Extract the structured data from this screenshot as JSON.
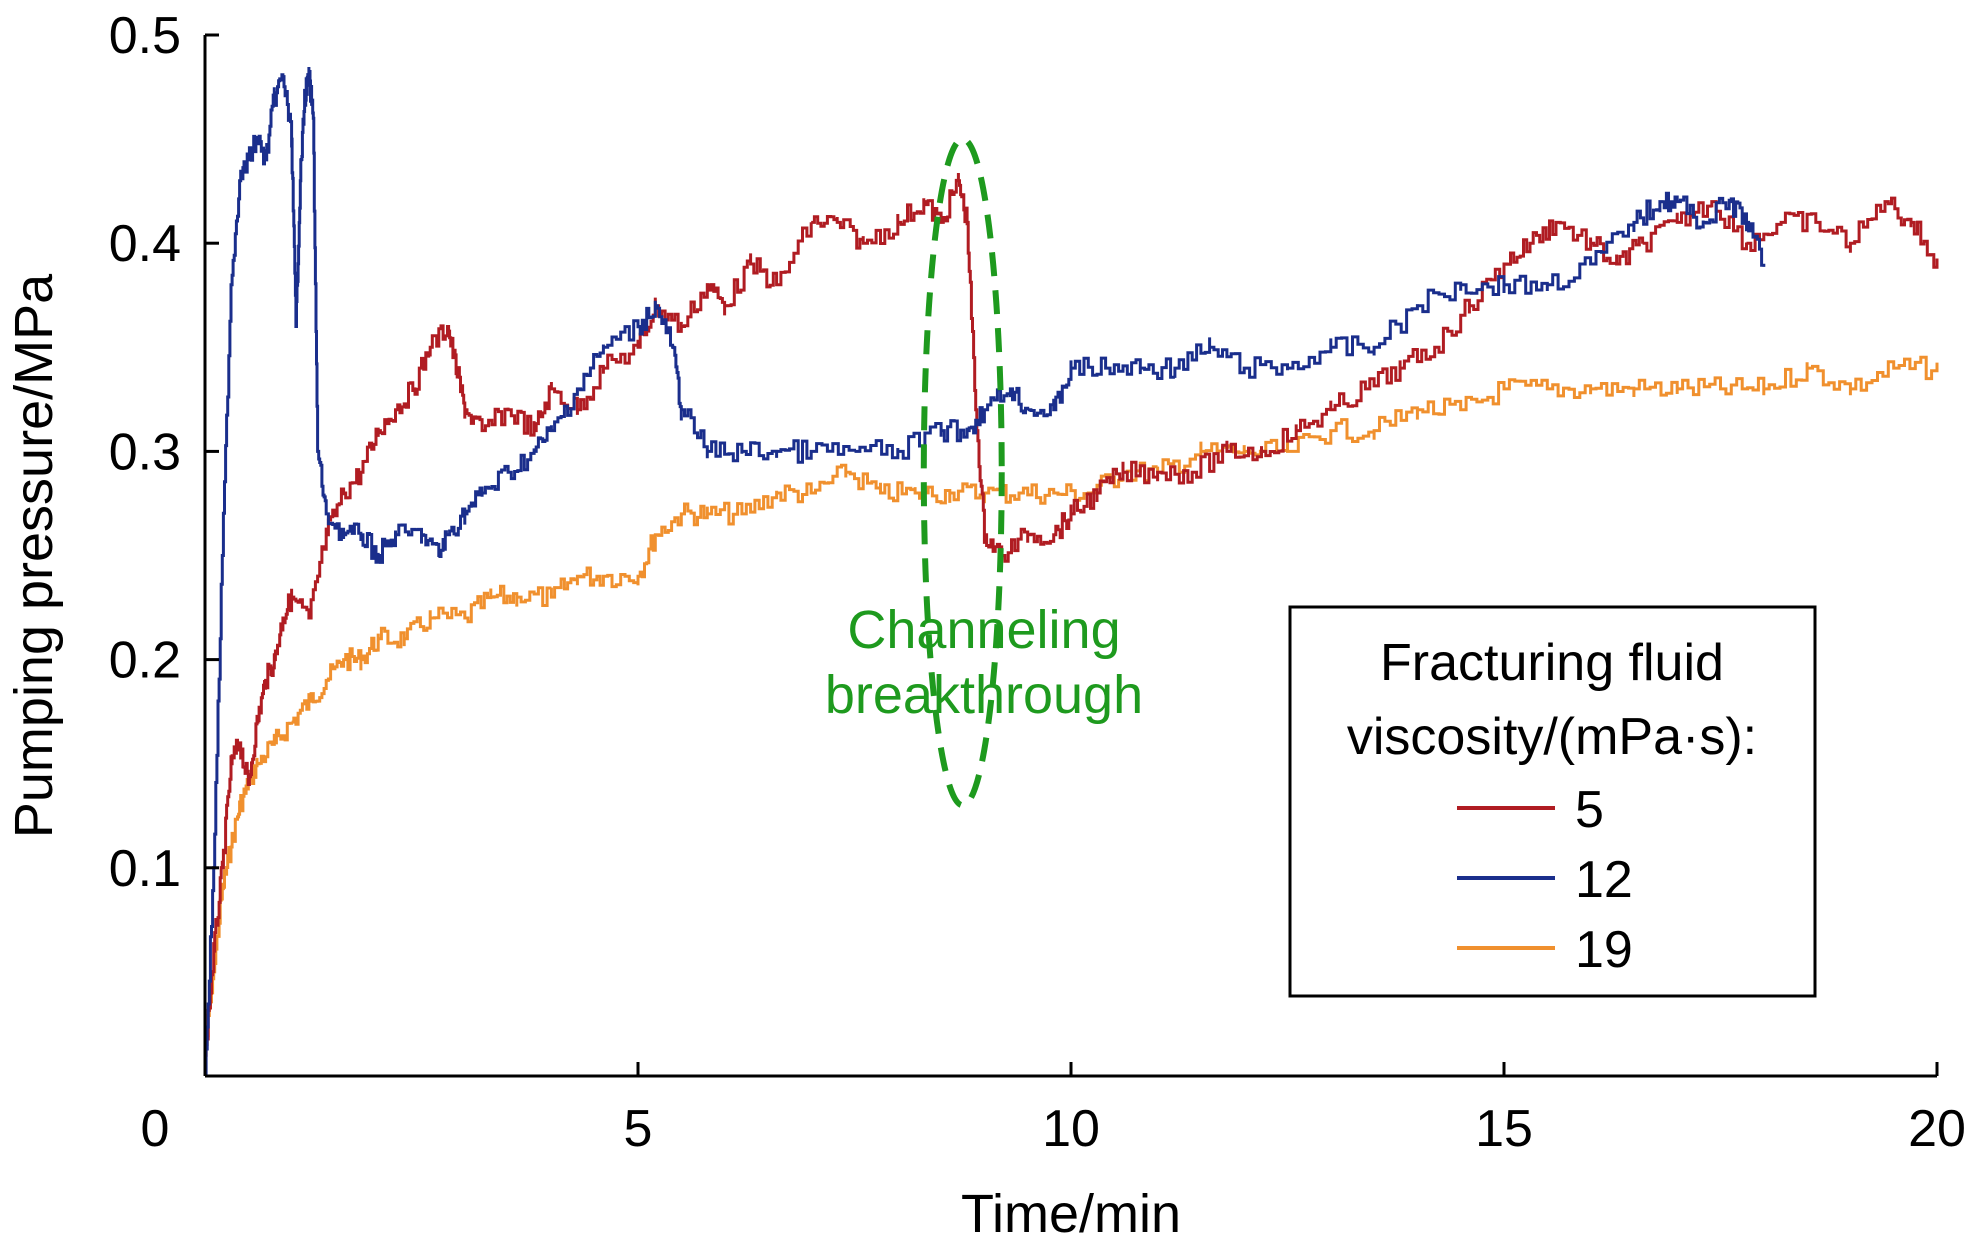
{
  "chart_data": {
    "type": "line",
    "xlabel": "Time/min",
    "ylabel": "Pumping  pressure/MPa",
    "xlim": [
      0,
      20
    ],
    "ylim": [
      0,
      0.5
    ],
    "xticks": [
      0,
      5,
      10,
      15,
      20
    ],
    "yticks": [
      0.1,
      0.2,
      0.3,
      0.4,
      0.5
    ],
    "xtick_labels": [
      "0",
      "5",
      "10",
      "15",
      "20"
    ],
    "ytick_labels": [
      "0.1",
      "0.2",
      "0.3",
      "0.4",
      "0.5"
    ],
    "grid": false,
    "legend": {
      "title_line1": "Fracturing fluid",
      "title_line2": "viscosity/(mPa·s):",
      "placement": "bottom-right"
    },
    "annotation": {
      "line1": "Channeling",
      "line2": "breakthrough",
      "center": [
        8.75,
        0.29
      ],
      "radius": [
        0.45,
        0.16
      ],
      "color": "#1e9a1e"
    },
    "series": [
      {
        "name": "5",
        "color": "#b01c22",
        "x": [
          0,
          0.1,
          0.2,
          0.3,
          0.4,
          0.5,
          0.6,
          0.7,
          0.8,
          0.9,
          1.0,
          1.2,
          1.4,
          1.6,
          1.8,
          2.0,
          2.2,
          2.4,
          2.6,
          2.8,
          2.9,
          3.0,
          3.2,
          3.5,
          3.8,
          4.0,
          4.3,
          4.6,
          5.0,
          5.2,
          5.5,
          5.8,
          6.0,
          6.3,
          6.6,
          7.0,
          7.3,
          7.6,
          8.0,
          8.3,
          8.5,
          8.7,
          8.8,
          8.9,
          9.0,
          9.2,
          9.5,
          9.8,
          10.0,
          10.3,
          10.6,
          11.0,
          11.4,
          11.8,
          12.2,
          12.6,
          13.0,
          13.4,
          13.8,
          14.2,
          14.6,
          15.0,
          15.3,
          15.6,
          16.0,
          16.3,
          16.6,
          17.0,
          17.4,
          17.8,
          18.2,
          18.6,
          19.0,
          19.4,
          19.7,
          20.0
        ],
        "y": [
          0.01,
          0.06,
          0.1,
          0.15,
          0.16,
          0.14,
          0.17,
          0.19,
          0.2,
          0.22,
          0.23,
          0.22,
          0.26,
          0.28,
          0.29,
          0.31,
          0.32,
          0.33,
          0.35,
          0.36,
          0.34,
          0.32,
          0.31,
          0.32,
          0.31,
          0.33,
          0.32,
          0.34,
          0.35,
          0.37,
          0.36,
          0.38,
          0.37,
          0.39,
          0.38,
          0.41,
          0.41,
          0.4,
          0.41,
          0.42,
          0.41,
          0.43,
          0.41,
          0.32,
          0.26,
          0.25,
          0.26,
          0.26,
          0.27,
          0.28,
          0.29,
          0.29,
          0.29,
          0.3,
          0.3,
          0.31,
          0.32,
          0.33,
          0.34,
          0.35,
          0.37,
          0.39,
          0.4,
          0.41,
          0.4,
          0.39,
          0.4,
          0.41,
          0.42,
          0.4,
          0.41,
          0.41,
          0.4,
          0.42,
          0.41,
          0.39
        ]
      },
      {
        "name": "12",
        "color": "#1a2e8c",
        "x": [
          0,
          0.1,
          0.2,
          0.3,
          0.4,
          0.5,
          0.6,
          0.7,
          0.8,
          0.9,
          1.0,
          1.05,
          1.1,
          1.15,
          1.2,
          1.25,
          1.3,
          1.4,
          1.6,
          1.8,
          2.0,
          2.2,
          2.5,
          2.7,
          2.8,
          3.0,
          3.2,
          3.5,
          3.8,
          4.0,
          4.3,
          4.6,
          5.0,
          5.2,
          5.4,
          5.5,
          5.8,
          6.2,
          6.6,
          7.0,
          7.5,
          8.0,
          8.5,
          8.8,
          9.0,
          9.3,
          9.5,
          9.8,
          10.0,
          10.4,
          10.8,
          11.2,
          11.6,
          12.0,
          12.5,
          13.0,
          13.5,
          14.0,
          14.5,
          15.0,
          15.5,
          16.0,
          16.5,
          16.8,
          17.0,
          17.3,
          17.6,
          17.8,
          18.0
        ],
        "y": [
          0.0,
          0.1,
          0.25,
          0.38,
          0.43,
          0.44,
          0.45,
          0.44,
          0.47,
          0.48,
          0.45,
          0.36,
          0.43,
          0.47,
          0.48,
          0.46,
          0.3,
          0.27,
          0.26,
          0.26,
          0.25,
          0.26,
          0.26,
          0.25,
          0.26,
          0.27,
          0.28,
          0.29,
          0.3,
          0.31,
          0.33,
          0.35,
          0.36,
          0.37,
          0.35,
          0.32,
          0.3,
          0.3,
          0.3,
          0.3,
          0.3,
          0.3,
          0.31,
          0.31,
          0.32,
          0.33,
          0.32,
          0.32,
          0.34,
          0.34,
          0.34,
          0.34,
          0.35,
          0.34,
          0.34,
          0.35,
          0.35,
          0.37,
          0.38,
          0.38,
          0.38,
          0.39,
          0.41,
          0.42,
          0.42,
          0.41,
          0.42,
          0.41,
          0.39
        ]
      },
      {
        "name": "19",
        "color": "#f0902e",
        "x": [
          0,
          0.1,
          0.2,
          0.3,
          0.4,
          0.5,
          0.6,
          0.8,
          1.0,
          1.2,
          1.4,
          1.6,
          1.8,
          2.0,
          2.3,
          2.6,
          3.0,
          3.3,
          3.6,
          4.0,
          4.3,
          4.6,
          5.0,
          5.2,
          5.5,
          5.8,
          6.2,
          6.6,
          7.0,
          7.4,
          7.8,
          8.2,
          8.6,
          9.0,
          9.4,
          9.8,
          10.2,
          10.6,
          11.0,
          11.5,
          12.0,
          12.5,
          13.0,
          13.5,
          14.0,
          14.5,
          15.0,
          15.5,
          16.0,
          16.5,
          17.0,
          17.5,
          18.0,
          18.5,
          19.0,
          19.5,
          20.0
        ],
        "y": [
          0.01,
          0.05,
          0.09,
          0.11,
          0.13,
          0.14,
          0.15,
          0.16,
          0.17,
          0.18,
          0.19,
          0.2,
          0.2,
          0.21,
          0.21,
          0.22,
          0.22,
          0.23,
          0.23,
          0.23,
          0.24,
          0.24,
          0.24,
          0.26,
          0.27,
          0.27,
          0.27,
          0.28,
          0.28,
          0.29,
          0.28,
          0.28,
          0.28,
          0.28,
          0.28,
          0.28,
          0.28,
          0.29,
          0.29,
          0.3,
          0.3,
          0.3,
          0.31,
          0.31,
          0.32,
          0.32,
          0.33,
          0.33,
          0.33,
          0.33,
          0.33,
          0.33,
          0.33,
          0.34,
          0.33,
          0.34,
          0.34
        ]
      }
    ]
  }
}
